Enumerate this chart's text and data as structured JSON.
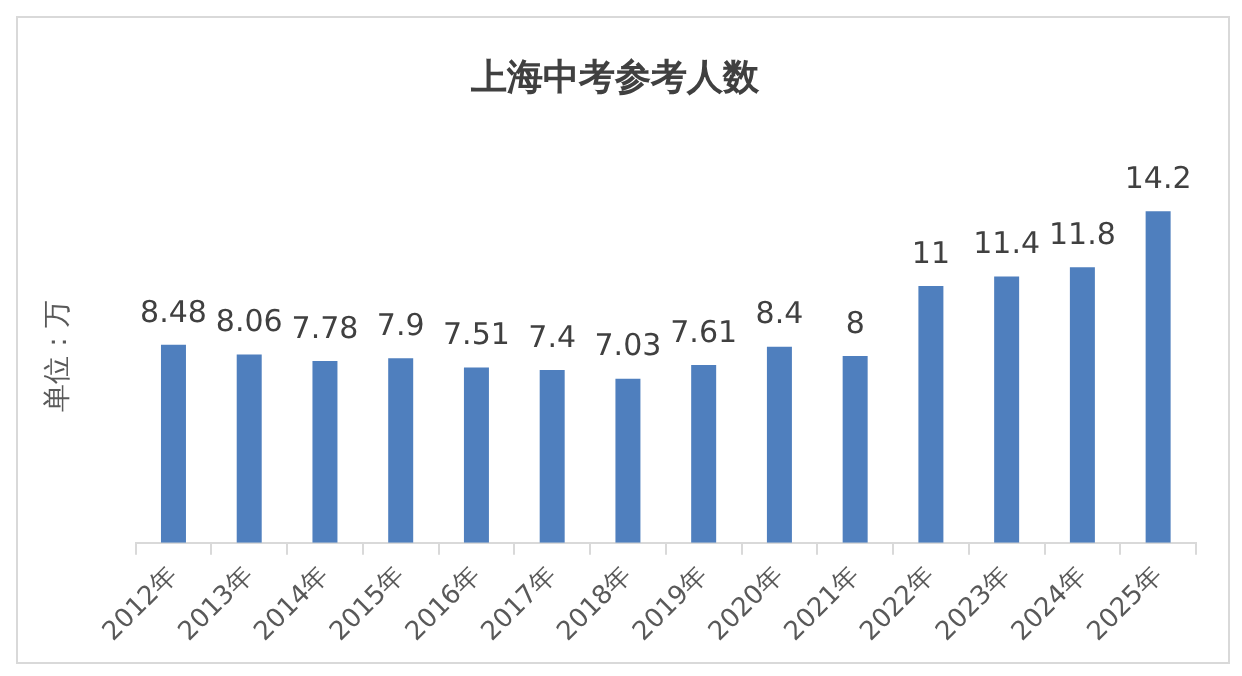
{
  "chart_data": {
    "type": "bar",
    "title": "上海中考参考人数",
    "ylabel": "单位：万",
    "categories": [
      "2012年",
      "2013年",
      "2014年",
      "2015年",
      "2016年",
      "2017年",
      "2018年",
      "2019年",
      "2020年",
      "2021年",
      "2022年",
      "2023年",
      "2024年",
      "2025年"
    ],
    "values": [
      8.48,
      8.06,
      7.78,
      7.9,
      7.51,
      7.4,
      7.03,
      7.61,
      8.4,
      8,
      11,
      11.4,
      11.8,
      14.2
    ],
    "color": "#4f7fbe",
    "data_labels": true,
    "grid": false,
    "legend": false
  }
}
